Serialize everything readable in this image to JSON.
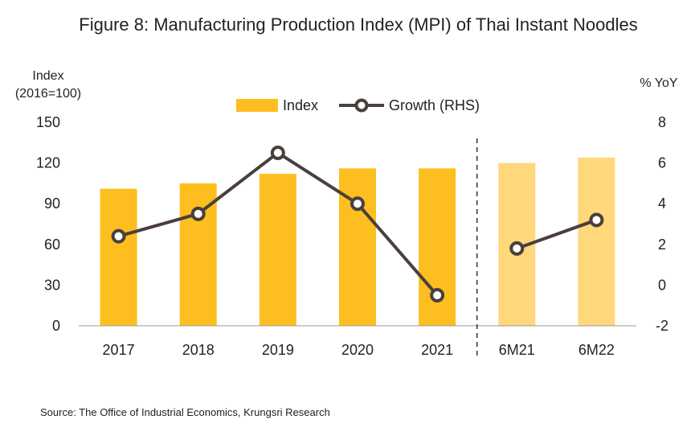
{
  "chart_data": {
    "type": "bar",
    "title": "Figure 8: Manufacturing Production Index (MPI) of Thai Instant Noodles",
    "categories": [
      "2017",
      "2018",
      "2019",
      "2020",
      "2021",
      "6M21",
      "6M22"
    ],
    "y_left_label_line1": "Index",
    "y_left_label_line2": "(2016=100)",
    "y_right_label": "% YoY",
    "y_left_ticks": [
      "0",
      "30",
      "60",
      "90",
      "120",
      "150"
    ],
    "y_right_ticks": [
      "-2",
      "0",
      "2",
      "4",
      "6",
      "8"
    ],
    "ylim_left": [
      0,
      150
    ],
    "ylim_right": [
      -2,
      8
    ],
    "series": [
      {
        "name": "Index",
        "type": "bar",
        "axis": "left",
        "values": [
          101,
          105,
          112,
          116,
          116,
          120,
          124
        ],
        "colors": [
          "#FDBE1F",
          "#FDBE1F",
          "#FDBE1F",
          "#FDBE1F",
          "#FDBE1F",
          "#FED87A",
          "#FED87A"
        ]
      },
      {
        "name": "Growth (RHS)",
        "type": "line",
        "axis": "right",
        "values": [
          2.4,
          3.5,
          6.5,
          4.0,
          -0.5,
          1.8,
          3.2
        ],
        "segments": [
          [
            0,
            4
          ],
          [
            5,
            6
          ]
        ],
        "color": "#4A3F3D"
      }
    ],
    "divider_after_index": 4,
    "grid": false,
    "legend_position": "top-center",
    "source": "Source: The Office of Industrial Economics, Krungsri Research"
  }
}
